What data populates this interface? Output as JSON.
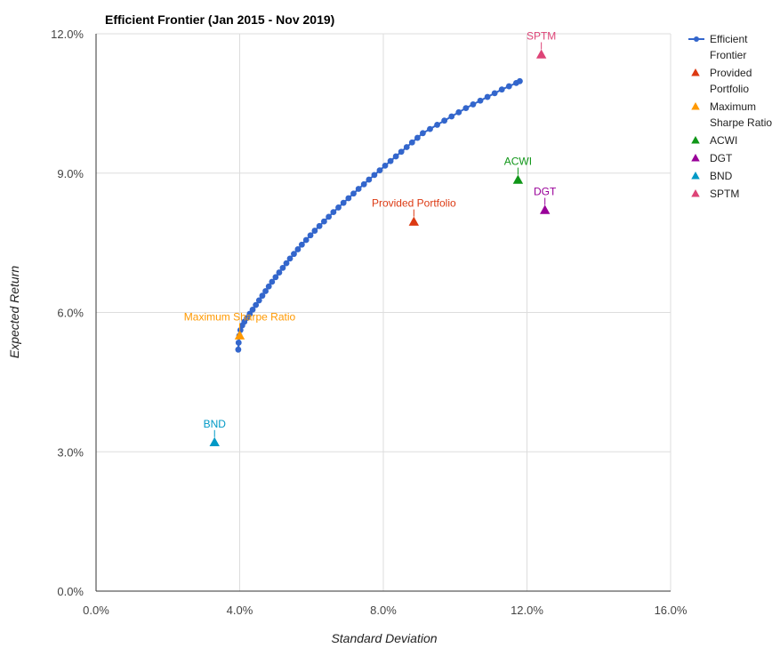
{
  "chart_data": {
    "type": "scatter",
    "title": "Efficient Frontier (Jan 2015 - Nov 2019)",
    "xlabel": "Standard Deviation",
    "ylabel": "Expected Return",
    "xlim": [
      0,
      16
    ],
    "ylim": [
      0,
      12
    ],
    "x_ticks": [
      "0.0%",
      "4.0%",
      "8.0%",
      "12.0%",
      "16.0%"
    ],
    "y_ticks": [
      "0.0%",
      "3.0%",
      "6.0%",
      "9.0%",
      "12.0%"
    ],
    "x_tick_values": [
      0,
      4,
      8,
      12,
      16
    ],
    "y_tick_values": [
      0,
      3,
      6,
      9,
      12
    ],
    "grid": true,
    "legend_position": "right",
    "frontier": {
      "name": "Efficient Frontier",
      "legend_lines": [
        "Efficient",
        "Frontier"
      ],
      "color": "#3366cc",
      "x": [
        3.96,
        3.97,
        3.99,
        4.02,
        4.07,
        4.13,
        4.2,
        4.28,
        4.36,
        4.45,
        4.54,
        4.63,
        4.72,
        4.81,
        4.9,
        5.0,
        5.1,
        5.2,
        5.3,
        5.4,
        5.51,
        5.62,
        5.73,
        5.85,
        5.97,
        6.09,
        6.22,
        6.35,
        6.48,
        6.61,
        6.75,
        6.89,
        7.03,
        7.17,
        7.31,
        7.46,
        7.6,
        7.75,
        7.9,
        8.05,
        8.2,
        8.35,
        8.5,
        8.65,
        8.8,
        8.95,
        9.1,
        9.3,
        9.5,
        9.7,
        9.9,
        10.1,
        10.3,
        10.5,
        10.7,
        10.9,
        11.1,
        11.3,
        11.5,
        11.7,
        11.8
      ],
      "y": [
        5.2,
        5.35,
        5.5,
        5.62,
        5.72,
        5.8,
        5.88,
        5.97,
        6.06,
        6.16,
        6.26,
        6.36,
        6.46,
        6.56,
        6.66,
        6.76,
        6.86,
        6.96,
        7.06,
        7.16,
        7.26,
        7.36,
        7.46,
        7.56,
        7.66,
        7.76,
        7.86,
        7.96,
        8.06,
        8.16,
        8.26,
        8.36,
        8.46,
        8.56,
        8.66,
        8.76,
        8.86,
        8.96,
        9.06,
        9.16,
        9.26,
        9.36,
        9.46,
        9.56,
        9.66,
        9.76,
        9.86,
        9.95,
        10.04,
        10.13,
        10.22,
        10.31,
        10.4,
        10.48,
        10.56,
        10.64,
        10.72,
        10.8,
        10.87,
        10.94,
        10.98
      ]
    },
    "points": [
      {
        "name": "Provided Portfolio",
        "legend_lines": [
          "Provided",
          "Portfolio"
        ],
        "x": 8.85,
        "y": 7.95,
        "color": "#dc3912",
        "label": "Provided Portfolio",
        "label_color": "#dc3912"
      },
      {
        "name": "Maximum Sharpe Ratio",
        "legend_lines": [
          "Maximum",
          "Sharpe Ratio"
        ],
        "x": 4.0,
        "y": 5.5,
        "color": "#ff9900",
        "label": "Maximum Sharpe Ratio",
        "label_color": "#ff9900"
      },
      {
        "name": "ACWI",
        "legend_lines": [
          "ACWI"
        ],
        "x": 11.75,
        "y": 8.85,
        "color": "#109618",
        "label": "ACWI",
        "label_color": "#109618"
      },
      {
        "name": "DGT",
        "legend_lines": [
          "DGT"
        ],
        "x": 12.5,
        "y": 8.2,
        "color": "#990099",
        "label": "DGT",
        "label_color": "#990099"
      },
      {
        "name": "BND",
        "legend_lines": [
          "BND"
        ],
        "x": 3.3,
        "y": 3.2,
        "color": "#0099c6",
        "label": "BND",
        "label_color": "#0099c6"
      },
      {
        "name": "SPTM",
        "legend_lines": [
          "SPTM"
        ],
        "x": 12.4,
        "y": 11.55,
        "color": "#dd4477",
        "label": "SPTM",
        "label_color": "#dd4477"
      }
    ]
  }
}
